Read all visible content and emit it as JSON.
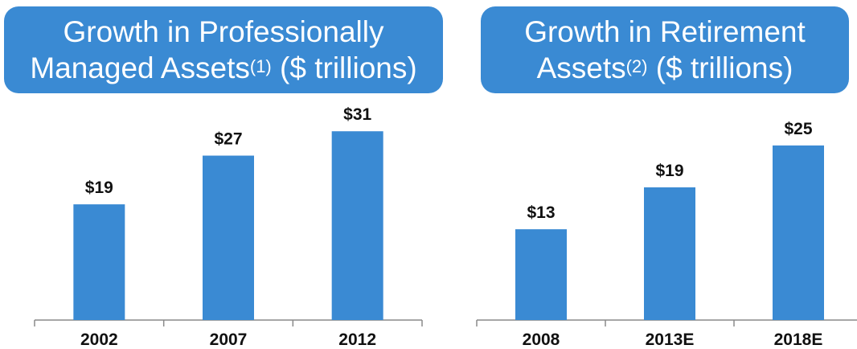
{
  "colors": {
    "bar": "#3a8ad3",
    "title_bg": "#3a8ad3",
    "axis": "#8a8a8a"
  },
  "chart_data": [
    {
      "type": "bar",
      "title_line1": "Growth in Professionally",
      "title_line2_pre": "Managed Assets",
      "title_sup": "(1)",
      "title_line2_post": " ($ trillions)",
      "categories": [
        "2002",
        "2007",
        "2012"
      ],
      "values": [
        19,
        27,
        31
      ],
      "value_labels": [
        "$19",
        "$27",
        "$31"
      ],
      "ylim": [
        0,
        37.5
      ],
      "grid": false
    },
    {
      "type": "bar",
      "title_line1": "Growth in Retirement",
      "title_line2_pre": "Assets",
      "title_sup": "(2)",
      "title_line2_post": " ($ trillions)",
      "categories": [
        "2008",
        "2013E",
        "2018E"
      ],
      "values": [
        13,
        19,
        25
      ],
      "value_labels": [
        "$13",
        "$19",
        "$25"
      ],
      "ylim": [
        0,
        32.7
      ],
      "grid": false
    }
  ]
}
